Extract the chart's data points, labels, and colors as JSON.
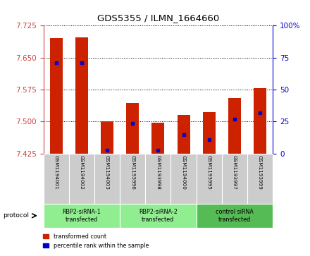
{
  "title": "GDS5355 / ILMN_1664660",
  "samples": [
    "GSM1194001",
    "GSM1194002",
    "GSM1194003",
    "GSM1193996",
    "GSM1193998",
    "GSM1194000",
    "GSM1193995",
    "GSM1193997",
    "GSM1193999"
  ],
  "red_values": [
    7.695,
    7.697,
    7.5,
    7.543,
    7.497,
    7.515,
    7.523,
    7.555,
    7.578
  ],
  "blue_values": [
    7.638,
    7.638,
    7.433,
    7.496,
    7.433,
    7.47,
    7.457,
    7.505,
    7.52
  ],
  "ymin": 7.425,
  "ymax": 7.725,
  "yticks": [
    7.425,
    7.5,
    7.575,
    7.65,
    7.725
  ],
  "y2min": 0,
  "y2max": 100,
  "y2ticks": [
    0,
    25,
    50,
    75,
    100
  ],
  "groups": [
    {
      "label": "RBP2-siRNA-1\ntransfected",
      "start": 0,
      "end": 3,
      "color": "#90ee90"
    },
    {
      "label": "RBP2-siRNA-2\ntransfected",
      "start": 3,
      "end": 6,
      "color": "#90ee90"
    },
    {
      "label": "control siRNA\ntransfected",
      "start": 6,
      "end": 9,
      "color": "#55bb55"
    }
  ],
  "bar_width": 0.5,
  "bar_color": "#cc2200",
  "blue_color": "#0000cc",
  "tick_color_left": "#cc4444",
  "tick_color_right": "#0000cc",
  "bg_color": "#ffffff",
  "grid_color": "#000000",
  "sample_box_color": "#cccccc"
}
